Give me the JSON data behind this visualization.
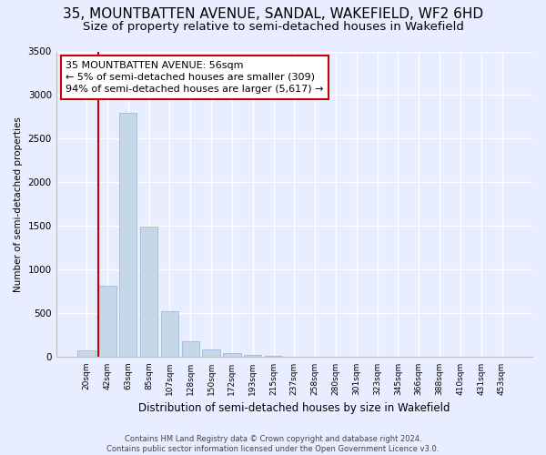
{
  "title_line1": "35, MOUNTBATTEN AVENUE, SANDAL, WAKEFIELD, WF2 6HD",
  "title_line2": "Size of property relative to semi-detached houses in Wakefield",
  "xlabel": "Distribution of semi-detached houses by size in Wakefield",
  "ylabel": "Number of semi-detached properties",
  "categories": [
    "20sqm",
    "42sqm",
    "63sqm",
    "85sqm",
    "107sqm",
    "128sqm",
    "150sqm",
    "172sqm",
    "193sqm",
    "215sqm",
    "237sqm",
    "258sqm",
    "280sqm",
    "301sqm",
    "323sqm",
    "345sqm",
    "366sqm",
    "388sqm",
    "410sqm",
    "431sqm",
    "453sqm"
  ],
  "values": [
    80,
    820,
    2800,
    1490,
    530,
    185,
    85,
    45,
    25,
    15,
    8,
    4,
    3,
    2,
    1,
    1,
    0,
    0,
    0,
    0,
    0
  ],
  "bar_color": "#c5d8ea",
  "bar_edge_color": "#a8c0d8",
  "annotation_text": "35 MOUNTBATTEN AVENUE: 56sqm\n← 5% of semi-detached houses are smaller (309)\n94% of semi-detached houses are larger (5,617) →",
  "annotation_box_facecolor": "#ffffff",
  "annotation_box_edgecolor": "#cc0000",
  "vline_color": "#cc0000",
  "footer_text": "Contains HM Land Registry data © Crown copyright and database right 2024.\nContains public sector information licensed under the Open Government Licence v3.0.",
  "ylim": [
    0,
    3500
  ],
  "yticks": [
    0,
    500,
    1000,
    1500,
    2000,
    2500,
    3000,
    3500
  ],
  "bg_color": "#e8eeff",
  "plot_bg_color": "#e8eeff",
  "grid_color": "#ffffff",
  "title1_fontsize": 11,
  "title2_fontsize": 9.5
}
